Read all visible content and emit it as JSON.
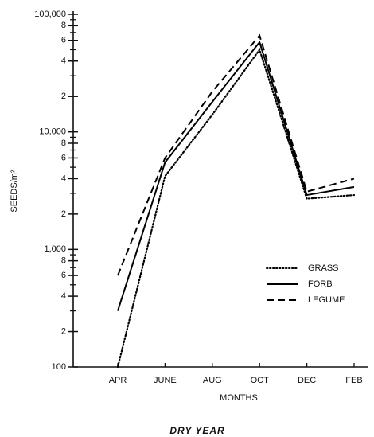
{
  "chart_data": {
    "type": "line",
    "title": "DRY YEAR",
    "x_label": "MONTHS",
    "y_label": "SEEDS/m²",
    "categories": [
      "APR",
      "JUNE",
      "AUG",
      "OCT",
      "DEC",
      "FEB"
    ],
    "log_scale": true,
    "ylim": [
      100,
      100000
    ],
    "yticks": [
      100,
      {
        "value": 200,
        "label": "2"
      },
      {
        "value": 400,
        "label": "4"
      },
      {
        "value": 600,
        "label": "6"
      },
      {
        "value": 800,
        "label": "8"
      },
      {
        "value": 1000,
        "label": "1,000"
      },
      {
        "value": 2000,
        "label": "2"
      },
      {
        "value": 4000,
        "label": "4"
      },
      {
        "value": 6000,
        "label": "6"
      },
      {
        "value": 8000,
        "label": "8"
      },
      {
        "value": 10000,
        "label": "10,000"
      },
      {
        "value": 20000,
        "label": "2"
      },
      {
        "value": 40000,
        "label": "4"
      },
      {
        "value": 60000,
        "label": "6"
      },
      {
        "value": 80000,
        "label": "8"
      },
      {
        "value": 100000,
        "label": "100,000"
      }
    ],
    "yminorticks": [
      300,
      500,
      700,
      900,
      3000,
      5000,
      7000,
      9000,
      30000,
      50000,
      70000,
      90000
    ],
    "legend": "lower-right",
    "series": [
      {
        "name": "GRASS",
        "color": "#000000",
        "style": "dotted",
        "values": [
          100,
          4200,
          14000,
          50000,
          2700,
          2900
        ]
      },
      {
        "name": "FORB",
        "color": "#000000",
        "style": "solid",
        "values": [
          300,
          5500,
          18000,
          58000,
          2900,
          3400
        ]
      },
      {
        "name": "LEGUME",
        "color": "#000000",
        "style": "dashed",
        "values": [
          600,
          6000,
          22000,
          66000,
          3100,
          4000
        ]
      }
    ]
  }
}
